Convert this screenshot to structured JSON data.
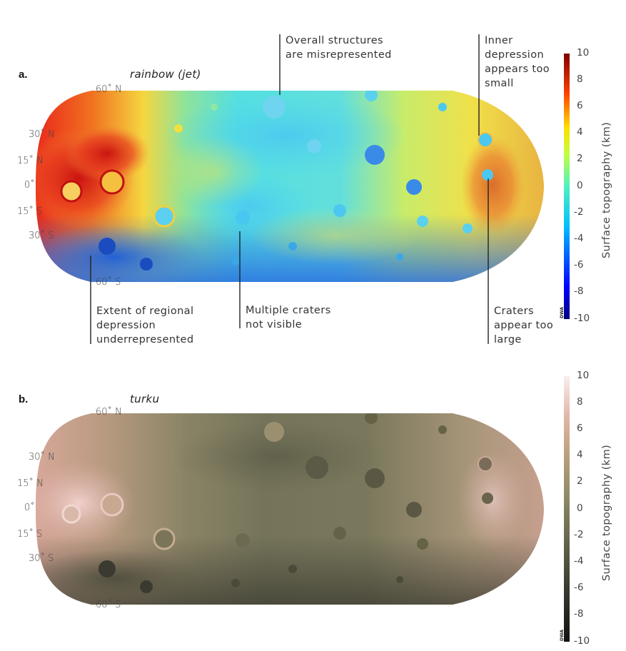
{
  "colors": {
    "jet_high": "#8b0000",
    "jet_low": "#00008b",
    "turku_high": "#f8eeee",
    "turku_low": "#111111",
    "leader_line": "#222222"
  },
  "panel_a": {
    "letter": "a.",
    "colormap_name": "rainbow (jet)",
    "latitude_labels": [
      "60˚ N",
      "30˚ N",
      "15˚ N",
      "0˚",
      "15˚ S",
      "30˚ S",
      "60˚ S"
    ],
    "annotations": {
      "overall_structures": [
        "Overall structures",
        "are misrepresented"
      ],
      "inner_depression": [
        "Inner",
        "depression",
        "appears too",
        "small"
      ],
      "regional_depression": [
        "Extent of regional",
        "depression",
        "underrepresented"
      ],
      "multiple_craters": [
        "Multiple craters",
        "not visible"
      ],
      "craters_large": [
        "Craters",
        "appear too",
        "large"
      ]
    },
    "colorbar": {
      "label": "Surface topography (km)",
      "ticks": [
        "10",
        "8",
        "6",
        "4",
        "2",
        "0",
        "-2",
        "-4",
        "-6",
        "-8",
        "-10"
      ],
      "credit": "DWA"
    }
  },
  "panel_b": {
    "letter": "b.",
    "colormap_name": "turku",
    "latitude_labels": [
      "60˚ N",
      "30˚ N",
      "15˚ N",
      "0˚",
      "15˚ S",
      "30˚ S",
      "60˚ S"
    ],
    "colorbar": {
      "label": "Surface topography (km)",
      "ticks": [
        "10",
        "8",
        "6",
        "4",
        "2",
        "0",
        "-2",
        "-4",
        "-6",
        "-8",
        "-10"
      ],
      "credit": "DWA"
    }
  }
}
